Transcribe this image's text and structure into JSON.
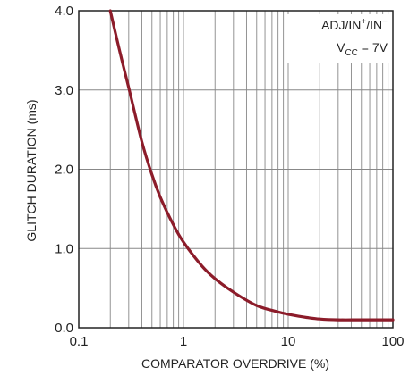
{
  "chart_data": {
    "type": "line",
    "xscale": "log",
    "xlim": [
      0.1,
      100
    ],
    "ylim": [
      0,
      4.0
    ],
    "grid": true,
    "xlabel": "COMPARATOR OVERDRIVE (%)",
    "ylabel": "GLITCH DURATION (ms)",
    "x_ticks": [
      0.1,
      1,
      10,
      100
    ],
    "x_tick_labels": [
      "0.1",
      "1",
      "10",
      "100"
    ],
    "y_ticks": [
      0,
      1,
      2,
      3,
      4
    ],
    "y_tick_labels": [
      "0.0",
      "1.0",
      "2.0",
      "3.0",
      "4.0"
    ],
    "annotation": {
      "line1": "ADJ/IN",
      "line1_sup1": "+",
      "line1_mid": "/IN",
      "line1_sup2": "−",
      "line2_main": "V",
      "line2_sub": "CC",
      "line2_rest": " = 7V"
    },
    "series": [
      {
        "color": "#8c1c2a",
        "x": [
          0.2,
          0.25,
          0.3,
          0.4,
          0.5,
          0.6,
          0.8,
          1,
          1.5,
          2,
          3,
          5,
          8,
          10,
          15,
          20,
          30,
          50,
          100
        ],
        "y": [
          4.0,
          3.45,
          3.03,
          2.35,
          1.93,
          1.65,
          1.3,
          1.08,
          0.78,
          0.62,
          0.45,
          0.28,
          0.2,
          0.17,
          0.13,
          0.11,
          0.1,
          0.1,
          0.1
        ]
      }
    ]
  }
}
